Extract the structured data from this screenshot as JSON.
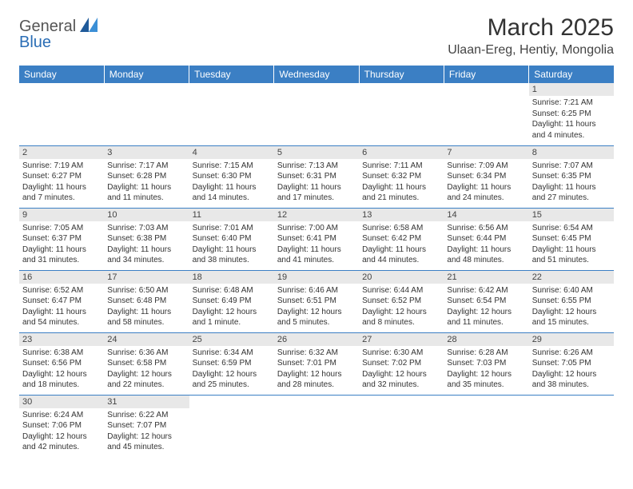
{
  "logo": {
    "general": "General",
    "blue": "Blue"
  },
  "title": "March 2025",
  "location": "Ulaan-Ereg, Hentiy, Mongolia",
  "colors": {
    "header_bg": "#3b7fc4",
    "header_fg": "#ffffff",
    "daynum_bg": "#e8e8e8",
    "border": "#3b7fc4",
    "logo_blue": "#2a6db5"
  },
  "weekdays": [
    "Sunday",
    "Monday",
    "Tuesday",
    "Wednesday",
    "Thursday",
    "Friday",
    "Saturday"
  ],
  "weeks": [
    [
      null,
      null,
      null,
      null,
      null,
      null,
      {
        "n": "1",
        "sunrise": "7:21 AM",
        "sunset": "6:25 PM",
        "daylight": "11 hours and 4 minutes."
      }
    ],
    [
      {
        "n": "2",
        "sunrise": "7:19 AM",
        "sunset": "6:27 PM",
        "daylight": "11 hours and 7 minutes."
      },
      {
        "n": "3",
        "sunrise": "7:17 AM",
        "sunset": "6:28 PM",
        "daylight": "11 hours and 11 minutes."
      },
      {
        "n": "4",
        "sunrise": "7:15 AM",
        "sunset": "6:30 PM",
        "daylight": "11 hours and 14 minutes."
      },
      {
        "n": "5",
        "sunrise": "7:13 AM",
        "sunset": "6:31 PM",
        "daylight": "11 hours and 17 minutes."
      },
      {
        "n": "6",
        "sunrise": "7:11 AM",
        "sunset": "6:32 PM",
        "daylight": "11 hours and 21 minutes."
      },
      {
        "n": "7",
        "sunrise": "7:09 AM",
        "sunset": "6:34 PM",
        "daylight": "11 hours and 24 minutes."
      },
      {
        "n": "8",
        "sunrise": "7:07 AM",
        "sunset": "6:35 PM",
        "daylight": "11 hours and 27 minutes."
      }
    ],
    [
      {
        "n": "9",
        "sunrise": "7:05 AM",
        "sunset": "6:37 PM",
        "daylight": "11 hours and 31 minutes."
      },
      {
        "n": "10",
        "sunrise": "7:03 AM",
        "sunset": "6:38 PM",
        "daylight": "11 hours and 34 minutes."
      },
      {
        "n": "11",
        "sunrise": "7:01 AM",
        "sunset": "6:40 PM",
        "daylight": "11 hours and 38 minutes."
      },
      {
        "n": "12",
        "sunrise": "7:00 AM",
        "sunset": "6:41 PM",
        "daylight": "11 hours and 41 minutes."
      },
      {
        "n": "13",
        "sunrise": "6:58 AM",
        "sunset": "6:42 PM",
        "daylight": "11 hours and 44 minutes."
      },
      {
        "n": "14",
        "sunrise": "6:56 AM",
        "sunset": "6:44 PM",
        "daylight": "11 hours and 48 minutes."
      },
      {
        "n": "15",
        "sunrise": "6:54 AM",
        "sunset": "6:45 PM",
        "daylight": "11 hours and 51 minutes."
      }
    ],
    [
      {
        "n": "16",
        "sunrise": "6:52 AM",
        "sunset": "6:47 PM",
        "daylight": "11 hours and 54 minutes."
      },
      {
        "n": "17",
        "sunrise": "6:50 AM",
        "sunset": "6:48 PM",
        "daylight": "11 hours and 58 minutes."
      },
      {
        "n": "18",
        "sunrise": "6:48 AM",
        "sunset": "6:49 PM",
        "daylight": "12 hours and 1 minute."
      },
      {
        "n": "19",
        "sunrise": "6:46 AM",
        "sunset": "6:51 PM",
        "daylight": "12 hours and 5 minutes."
      },
      {
        "n": "20",
        "sunrise": "6:44 AM",
        "sunset": "6:52 PM",
        "daylight": "12 hours and 8 minutes."
      },
      {
        "n": "21",
        "sunrise": "6:42 AM",
        "sunset": "6:54 PM",
        "daylight": "12 hours and 11 minutes."
      },
      {
        "n": "22",
        "sunrise": "6:40 AM",
        "sunset": "6:55 PM",
        "daylight": "12 hours and 15 minutes."
      }
    ],
    [
      {
        "n": "23",
        "sunrise": "6:38 AM",
        "sunset": "6:56 PM",
        "daylight": "12 hours and 18 minutes."
      },
      {
        "n": "24",
        "sunrise": "6:36 AM",
        "sunset": "6:58 PM",
        "daylight": "12 hours and 22 minutes."
      },
      {
        "n": "25",
        "sunrise": "6:34 AM",
        "sunset": "6:59 PM",
        "daylight": "12 hours and 25 minutes."
      },
      {
        "n": "26",
        "sunrise": "6:32 AM",
        "sunset": "7:01 PM",
        "daylight": "12 hours and 28 minutes."
      },
      {
        "n": "27",
        "sunrise": "6:30 AM",
        "sunset": "7:02 PM",
        "daylight": "12 hours and 32 minutes."
      },
      {
        "n": "28",
        "sunrise": "6:28 AM",
        "sunset": "7:03 PM",
        "daylight": "12 hours and 35 minutes."
      },
      {
        "n": "29",
        "sunrise": "6:26 AM",
        "sunset": "7:05 PM",
        "daylight": "12 hours and 38 minutes."
      }
    ],
    [
      {
        "n": "30",
        "sunrise": "6:24 AM",
        "sunset": "7:06 PM",
        "daylight": "12 hours and 42 minutes."
      },
      {
        "n": "31",
        "sunrise": "6:22 AM",
        "sunset": "7:07 PM",
        "daylight": "12 hours and 45 minutes."
      },
      null,
      null,
      null,
      null,
      null
    ]
  ],
  "labels": {
    "sunrise": "Sunrise: ",
    "sunset": "Sunset: ",
    "daylight": "Daylight: "
  }
}
